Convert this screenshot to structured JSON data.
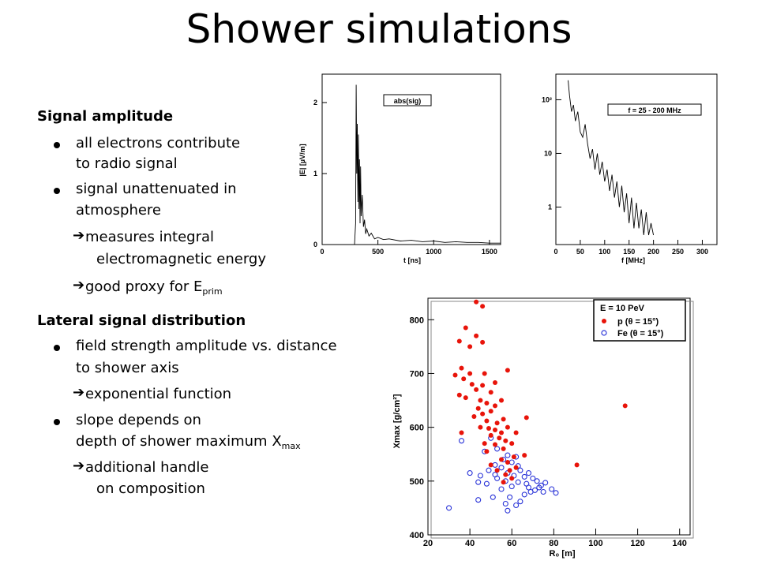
{
  "title": "Shower simulations",
  "text": {
    "signal_heading": "Signal amplitude",
    "bullet1_line1": "all electrons contribute",
    "bullet1_line2": "to radio signal",
    "bullet2_line1": "signal unattenuated in",
    "bullet2_line2": "atmosphere",
    "arrow1_line1": "measures integral",
    "arrow1_line2": "electromagnetic energy",
    "arrow2_text": "good proxy for E",
    "arrow2_sub": "prim",
    "lateral_heading": "Lateral signal distribution",
    "bullet3_line1": "field strength amplitude vs. distance",
    "bullet3_line2": "to shower axis",
    "arrow3_text": "exponential function",
    "bullet4_line1": "slope depends on",
    "bullet4_line2": "depth of shower maximum X",
    "bullet4_sub": "max",
    "arrow4_line1": "additional handle",
    "arrow4_line2": "on composition",
    "arrow_glyph": "➔"
  },
  "chart_data": [
    {
      "type": "line",
      "legend": "abs(sig)",
      "xlabel": "t [ns]",
      "ylabel": "|E| [µV/m]",
      "xlim": [
        0,
        1600
      ],
      "ylim": [
        0,
        2.4
      ],
      "xticks": [
        "0",
        "500",
        "1000",
        "1500"
      ],
      "yticks": [
        "0",
        "1",
        "2"
      ],
      "x": [
        0,
        290,
        300,
        305,
        310,
        315,
        320,
        325,
        330,
        335,
        340,
        345,
        350,
        360,
        370,
        380,
        390,
        400,
        420,
        440,
        470,
        500,
        550,
        600,
        700,
        800,
        900,
        1000,
        1100,
        1200,
        1300,
        1400,
        1500,
        1600
      ],
      "y": [
        0,
        0,
        0.3,
        2.25,
        1.0,
        1.7,
        0.6,
        1.55,
        0.5,
        1.2,
        0.3,
        1.1,
        0.4,
        0.7,
        0.25,
        0.35,
        0.15,
        0.22,
        0.12,
        0.16,
        0.08,
        0.1,
        0.07,
        0.08,
        0.05,
        0.06,
        0.04,
        0.05,
        0.03,
        0.04,
        0.03,
        0.03,
        0.02,
        0.02
      ]
    },
    {
      "type": "line",
      "legend": "f = 25 - 200 MHz",
      "xlabel": "f [MHz]",
      "ylabel": "",
      "log_y": true,
      "xlim": [
        0,
        330
      ],
      "ylim": [
        0.2,
        300
      ],
      "xticks": [
        "0",
        "50",
        "100",
        "150",
        "200",
        "250",
        "300"
      ],
      "yticks": [
        "1",
        "10",
        "10²"
      ],
      "x": [
        25,
        28,
        32,
        36,
        40,
        45,
        50,
        55,
        60,
        65,
        70,
        75,
        80,
        85,
        90,
        95,
        100,
        105,
        110,
        115,
        120,
        125,
        130,
        135,
        140,
        145,
        150,
        155,
        160,
        165,
        170,
        175,
        180,
        185,
        190,
        195,
        200
      ],
      "y": [
        230,
        120,
        60,
        80,
        40,
        60,
        25,
        20,
        35,
        15,
        8,
        12,
        5,
        10,
        4,
        7,
        3,
        5,
        2,
        4,
        1.5,
        3,
        1,
        2.5,
        0.8,
        1.8,
        0.5,
        1.5,
        0.4,
        1.2,
        0.4,
        0.9,
        0.3,
        0.8,
        0.3,
        0.5,
        0.3
      ]
    },
    {
      "type": "scatter",
      "legend_title": "E = 10 PeV",
      "xlabel": "R₀ [m]",
      "ylabel": "Xmax [g/cm²]",
      "xlim": [
        20,
        145
      ],
      "ylim": [
        400,
        840
      ],
      "xticks": [
        "20",
        "40",
        "60",
        "80",
        "100",
        "120",
        "140"
      ],
      "yticks": [
        "400",
        "500",
        "600",
        "700",
        "800"
      ],
      "series": [
        {
          "name": "p (θ = 15°)",
          "color": "#e8140a",
          "marker": "filled-circle",
          "points": [
            [
              43,
              833
            ],
            [
              46,
              825
            ],
            [
              38,
              785
            ],
            [
              43,
              770
            ],
            [
              35,
              760
            ],
            [
              46,
              758
            ],
            [
              40,
              750
            ],
            [
              36,
              710
            ],
            [
              40,
              700
            ],
            [
              47,
              700
            ],
            [
              33,
              697
            ],
            [
              37,
              690
            ],
            [
              52,
              683
            ],
            [
              41,
              680
            ],
            [
              46,
              678
            ],
            [
              58,
              706
            ],
            [
              43,
              670
            ],
            [
              50,
              665
            ],
            [
              35,
              660
            ],
            [
              38,
              655
            ],
            [
              45,
              650
            ],
            [
              48,
              645
            ],
            [
              52,
              640
            ],
            [
              55,
              650
            ],
            [
              44,
              635
            ],
            [
              50,
              630
            ],
            [
              46,
              625
            ],
            [
              42,
              620
            ],
            [
              48,
              612
            ],
            [
              53,
              608
            ],
            [
              56,
              615
            ],
            [
              67,
              618
            ],
            [
              45,
              600
            ],
            [
              49,
              598
            ],
            [
              52,
              595
            ],
            [
              55,
              590
            ],
            [
              58,
              600
            ],
            [
              62,
              590
            ],
            [
              50,
              585
            ],
            [
              54,
              580
            ],
            [
              57,
              575
            ],
            [
              60,
              570
            ],
            [
              52,
              568
            ],
            [
              56,
              560
            ],
            [
              48,
              555
            ],
            [
              61,
              545
            ],
            [
              55,
              540
            ],
            [
              58,
              535
            ],
            [
              50,
              530
            ],
            [
              62,
              525
            ],
            [
              53,
              520
            ],
            [
              57,
              512
            ],
            [
              60,
              505
            ],
            [
              56,
              498
            ],
            [
              114,
              640
            ],
            [
              91,
              530
            ],
            [
              36,
              590
            ],
            [
              66,
              548
            ],
            [
              47,
              570
            ],
            [
              59,
              520
            ]
          ]
        },
        {
          "name": "Fe (θ = 15°)",
          "color": "#2a34d8",
          "marker": "open-circle",
          "points": [
            [
              36,
              575
            ],
            [
              50,
              580
            ],
            [
              53,
              560
            ],
            [
              47,
              555
            ],
            [
              58,
              548
            ],
            [
              62,
              545
            ],
            [
              56,
              540
            ],
            [
              60,
              535
            ],
            [
              52,
              530
            ],
            [
              55,
              525
            ],
            [
              49,
              520
            ],
            [
              64,
              520
            ],
            [
              58,
              515
            ],
            [
              61,
              510
            ],
            [
              66,
              508
            ],
            [
              70,
              505
            ],
            [
              72,
              500
            ],
            [
              53,
              505
            ],
            [
              57,
              500
            ],
            [
              63,
              498
            ],
            [
              67,
              495
            ],
            [
              74,
              492
            ],
            [
              68,
              488
            ],
            [
              71,
              483
            ],
            [
              75,
              480
            ],
            [
              79,
              485
            ],
            [
              81,
              478
            ],
            [
              60,
              490
            ],
            [
              55,
              485
            ],
            [
              48,
              495
            ],
            [
              45,
              510
            ],
            [
              40,
              515
            ],
            [
              44,
              498
            ],
            [
              59,
              470
            ],
            [
              51,
              470
            ],
            [
              44,
              465
            ],
            [
              64,
              462
            ],
            [
              57,
              458
            ],
            [
              62,
              455
            ],
            [
              30,
              450
            ],
            [
              58,
              445
            ],
            [
              69,
              480
            ],
            [
              66,
              475
            ],
            [
              73,
              488
            ],
            [
              52,
              512
            ],
            [
              63,
              528
            ],
            [
              68,
              515
            ],
            [
              76,
              497
            ]
          ]
        }
      ]
    }
  ]
}
